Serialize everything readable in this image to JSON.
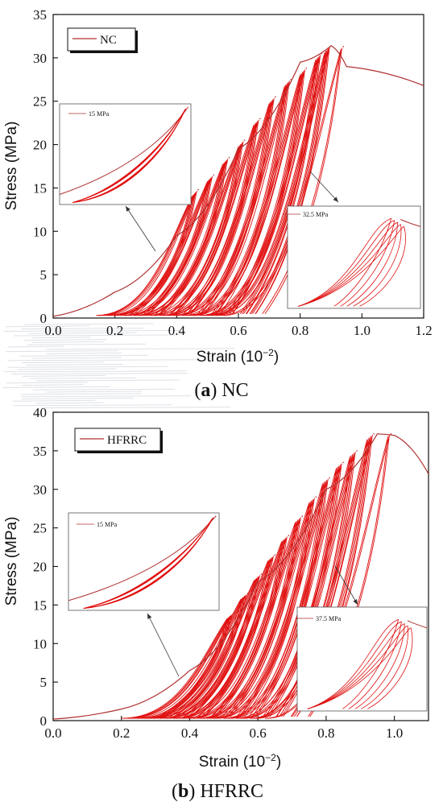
{
  "chart_data": [
    {
      "type": "line",
      "caption": {
        "letter": "a",
        "name": "NC"
      },
      "xlabel": "Strain (10⁻²)",
      "ylabel": "Stress (MPa)",
      "xlim": [
        0.0,
        1.2
      ],
      "ylim": [
        0,
        35
      ],
      "xticks": [
        "0.0",
        "0.2",
        "0.4",
        "0.6",
        "0.8",
        "1.0",
        "1.2"
      ],
      "yticks": [
        "0",
        "5",
        "10",
        "15",
        "20",
        "25",
        "30",
        "35"
      ],
      "legend": {
        "label": "NC",
        "placement": "top-left"
      },
      "color": "#e01010",
      "envelope_color": "#b03030",
      "series": [
        {
          "name": "NC",
          "x": [
            0.0,
            0.2,
            0.4,
            0.6,
            0.8,
            0.9,
            0.95,
            1.2
          ],
          "y": [
            0.2,
            3.0,
            9.5,
            19.5,
            29.5,
            31.4,
            29.0,
            26.8
          ]
        }
      ],
      "peaks": [
        {
          "x": 0.47,
          "y": 14.8
        },
        {
          "x": 0.52,
          "y": 16.5
        },
        {
          "x": 0.57,
          "y": 18.5
        },
        {
          "x": 0.62,
          "y": 20.5
        },
        {
          "x": 0.67,
          "y": 23.0
        },
        {
          "x": 0.72,
          "y": 25.5
        },
        {
          "x": 0.77,
          "y": 27.5
        },
        {
          "x": 0.82,
          "y": 28.8
        },
        {
          "x": 0.87,
          "y": 30.5
        },
        {
          "x": 0.9,
          "y": 31.4
        },
        {
          "x": 0.94,
          "y": 31.3
        }
      ],
      "insets": [
        {
          "label": "15 MPa"
        },
        {
          "label": "32.5 MPa"
        }
      ]
    },
    {
      "type": "line",
      "caption": {
        "letter": "b",
        "name": "HFRRC"
      },
      "xlabel": "Strain (10⁻²)",
      "ylabel": "Stress (MPa)",
      "xlim": [
        0.0,
        1.1
      ],
      "ylim": [
        0,
        40
      ],
      "xticks": [
        "0.0",
        "0.2",
        "0.4",
        "0.6",
        "0.8",
        "1.0"
      ],
      "yticks": [
        "0",
        "5",
        "10",
        "15",
        "20",
        "25",
        "30",
        "35",
        "40"
      ],
      "legend": {
        "label": "HFRRC",
        "placement": "top-left"
      },
      "color": "#e01010",
      "envelope_color": "#b03030",
      "series": [
        {
          "name": "HFRRC",
          "x": [
            0.0,
            0.2,
            0.4,
            0.6,
            0.8,
            0.95,
            1.0,
            1.1
          ],
          "y": [
            0.2,
            1.5,
            6.5,
            18.0,
            30.0,
            37.2,
            37.0,
            32.0
          ]
        }
      ],
      "peaks": [
        {
          "x": 0.53,
          "y": 14.0
        },
        {
          "x": 0.57,
          "y": 16.5
        },
        {
          "x": 0.61,
          "y": 19.0
        },
        {
          "x": 0.65,
          "y": 21.5
        },
        {
          "x": 0.69,
          "y": 24.0
        },
        {
          "x": 0.73,
          "y": 26.5
        },
        {
          "x": 0.77,
          "y": 29.0
        },
        {
          "x": 0.81,
          "y": 31.5
        },
        {
          "x": 0.85,
          "y": 33.5
        },
        {
          "x": 0.89,
          "y": 35.0
        },
        {
          "x": 0.94,
          "y": 37.2
        },
        {
          "x": 0.99,
          "y": 37.2
        }
      ],
      "insets": [
        {
          "label": "15 MPa"
        },
        {
          "label": "37.5 MPa"
        }
      ]
    }
  ]
}
